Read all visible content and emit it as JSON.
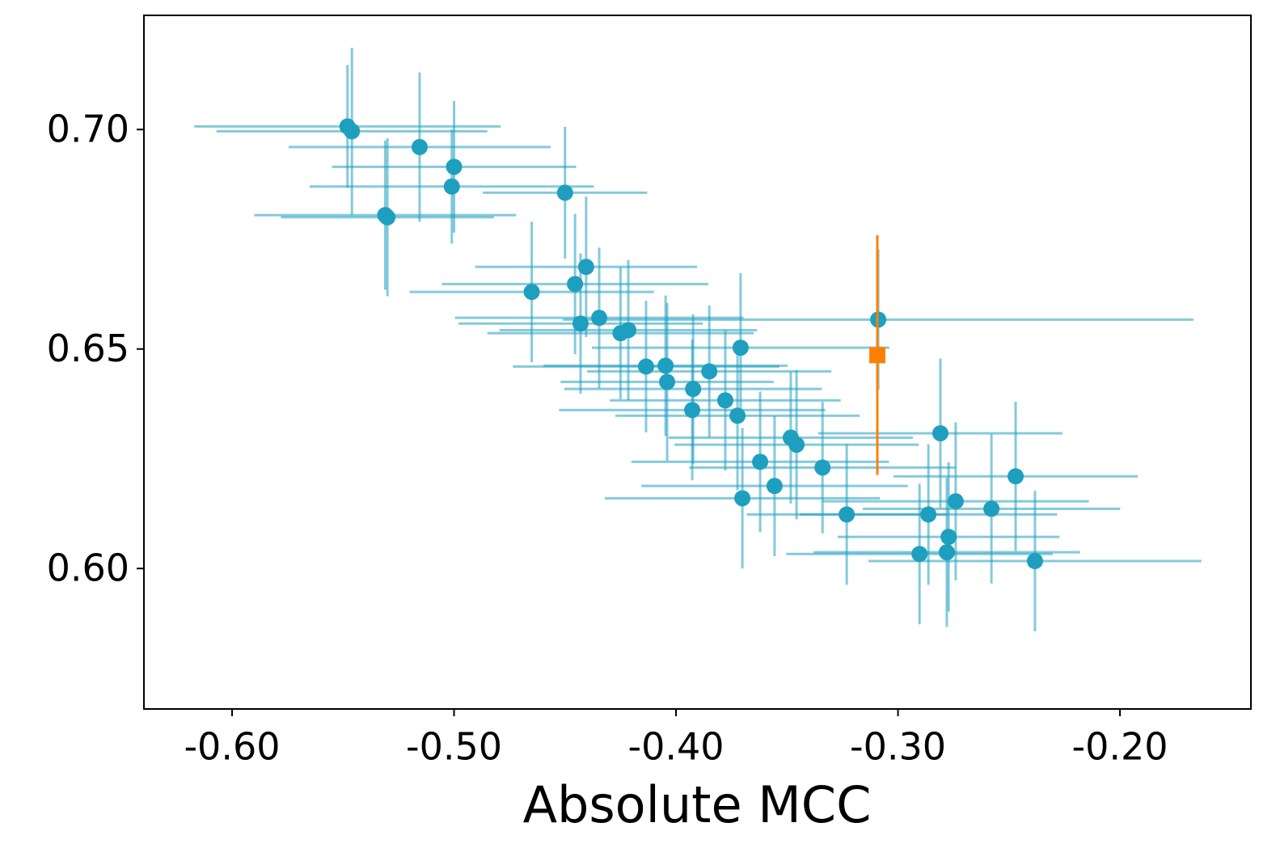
{
  "chart_data": {
    "type": "errorbar-scatter",
    "xlabel": "Absolute MCC",
    "xlim": [
      -0.6397,
      -0.141
    ],
    "ylim": [
      0.568,
      0.726
    ],
    "xticks": [
      {
        "value": -0.6,
        "label": "-0.60"
      },
      {
        "value": -0.5,
        "label": "-0.50"
      },
      {
        "value": -0.4,
        "label": "-0.40"
      },
      {
        "value": -0.3,
        "label": "-0.30"
      },
      {
        "value": -0.2,
        "label": "-0.20"
      }
    ],
    "yticks": [
      {
        "value": 0.6,
        "label": "0.60"
      },
      {
        "value": 0.65,
        "label": "0.65"
      },
      {
        "value": 0.7,
        "label": "0.70"
      }
    ],
    "grid": false,
    "series": [
      {
        "color": "#1f9fbf",
        "marker": "circle",
        "x": [
          -0.548,
          -0.546,
          -0.5155,
          -0.5,
          -0.501,
          -0.531,
          -0.53,
          -0.45,
          -0.465,
          -0.4405,
          -0.4455,
          -0.443,
          -0.4346,
          -0.425,
          -0.4215,
          -0.4135,
          -0.4047,
          -0.404,
          -0.3923,
          -0.3927,
          -0.385,
          -0.3778,
          -0.3709,
          -0.3723,
          -0.3701,
          -0.3621,
          -0.3556,
          -0.3483,
          -0.3457,
          -0.334,
          -0.3231,
          -0.3089,
          -0.2809,
          -0.2863,
          -0.274,
          -0.2772,
          -0.2903,
          -0.278,
          -0.2579,
          -0.247,
          -0.2383
        ],
        "values": [
          0.7007,
          0.6996,
          0.696,
          0.6915,
          0.687,
          0.6805,
          0.68,
          0.6856,
          0.663,
          0.6687,
          0.6648,
          0.6558,
          0.6571,
          0.6536,
          0.6543,
          0.646,
          0.6462,
          0.6425,
          0.6409,
          0.6361,
          0.6449,
          0.6383,
          0.6503,
          0.6348,
          0.616,
          0.6243,
          0.6188,
          0.6298,
          0.6282,
          0.623,
          0.6123,
          0.6567,
          0.6308,
          0.6123,
          0.6153,
          0.6072,
          0.6033,
          0.6037,
          0.6136,
          0.621,
          0.6017
        ],
        "x_err": [
          0.069,
          0.061,
          0.059,
          0.055,
          0.064,
          0.059,
          0.048,
          0.037,
          0.055,
          0.05,
          0.06,
          0.055,
          0.065,
          0.06,
          0.058,
          0.06,
          0.055,
          0.048,
          0.058,
          0.06,
          0.055,
          0.052,
          0.067,
          0.055,
          0.062,
          0.058,
          0.06,
          0.055,
          0.055,
          0.06,
          0.045,
          0.142,
          0.055,
          0.058,
          0.06,
          0.05,
          0.06,
          0.06,
          0.058,
          0.055,
          0.075
        ],
        "y_err": [
          0.014,
          0.019,
          0.017,
          0.015,
          0.013,
          0.017,
          0.018,
          0.015,
          0.016,
          0.016,
          0.016,
          0.016,
          0.016,
          0.015,
          0.016,
          0.015,
          0.016,
          0.018,
          0.017,
          0.016,
          0.015,
          0.016,
          0.017,
          0.017,
          0.016,
          0.016,
          0.016,
          0.015,
          0.017,
          0.015,
          0.016,
          0.016,
          0.017,
          0.016,
          0.018,
          0.017,
          0.016,
          0.017,
          0.017,
          0.017,
          0.016
        ]
      },
      {
        "color": "#ff8000",
        "marker": "square",
        "x": [
          -0.3093
        ],
        "values": [
          0.6486
        ],
        "y_err": [
          0.0273
        ]
      }
    ]
  }
}
